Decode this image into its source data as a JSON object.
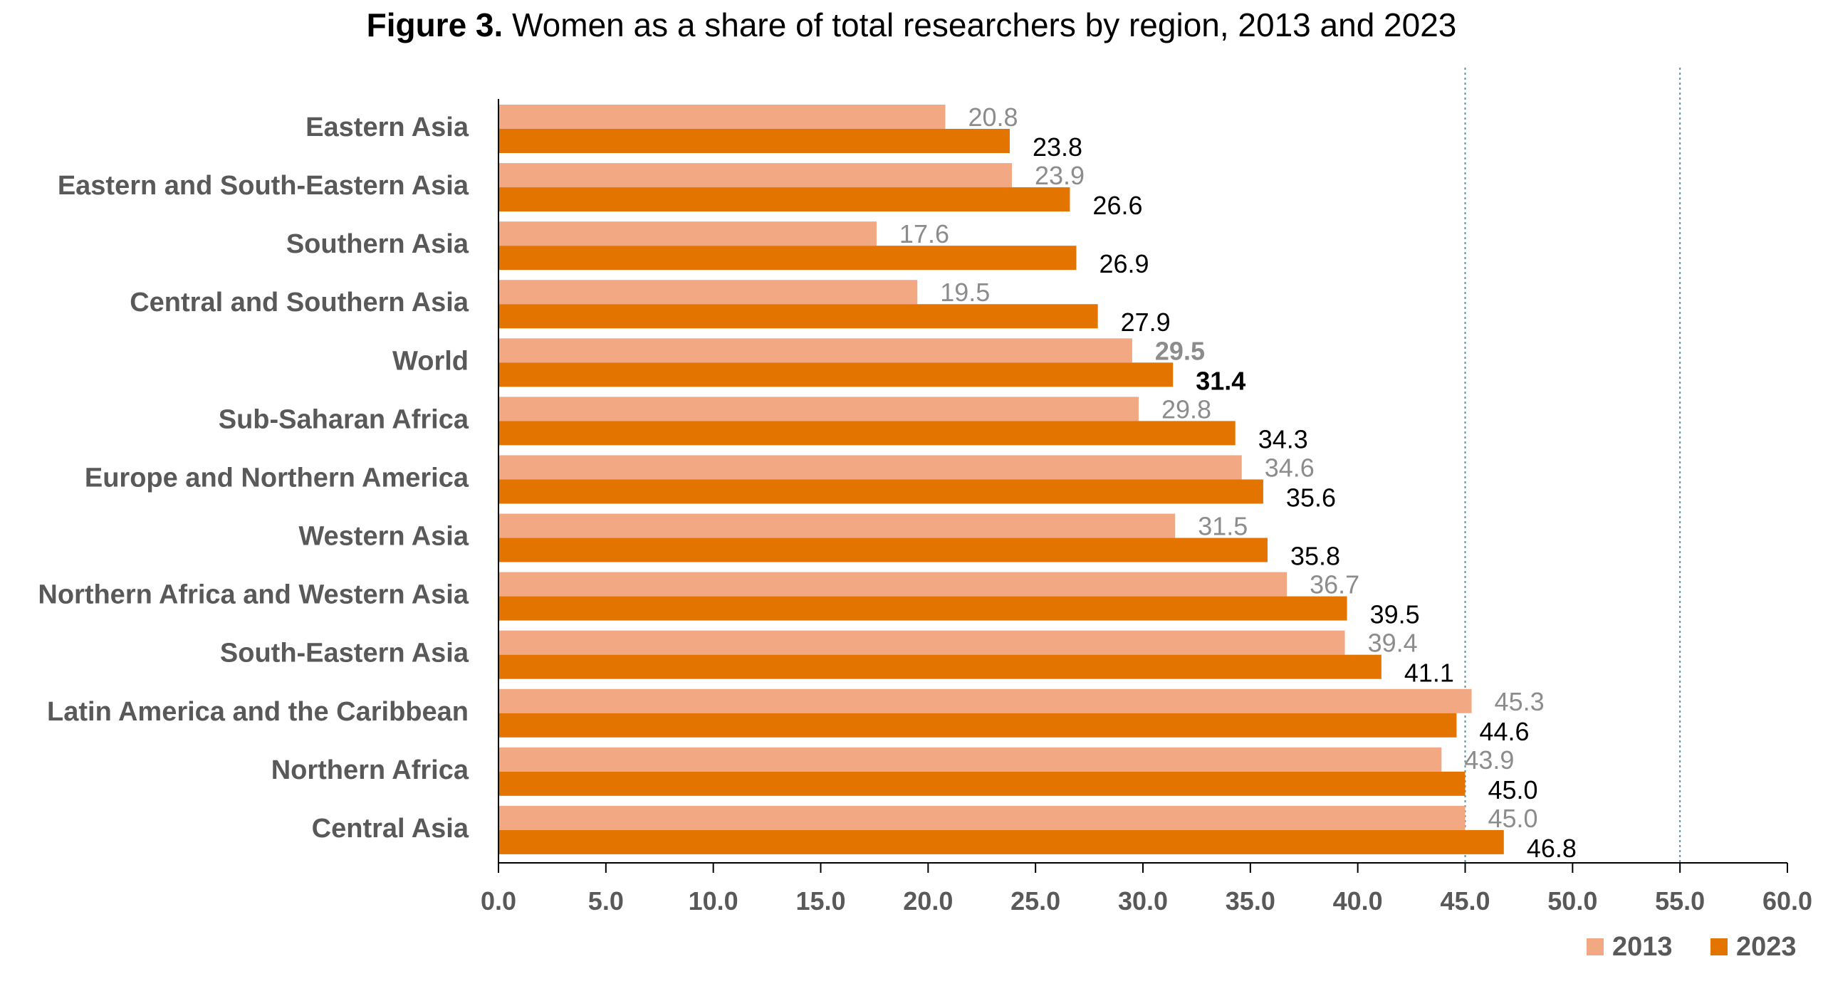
{
  "figure_label": "Figure 3.",
  "figure_title": "Women as a share of total researchers by region, 2013 and 2023",
  "colors": {
    "series_2013": "#f2a983",
    "series_2023": "#e37400",
    "axis": "#000000",
    "reference_line": "#5b8fa3"
  },
  "chart_data": {
    "type": "bar",
    "orientation": "horizontal",
    "title": "Figure 3. Women as a share of total researchers by region, 2013 and 2023",
    "categories": [
      "Eastern Asia",
      "Eastern and South-Eastern Asia",
      "Southern Asia",
      "Central and Southern Asia",
      "World",
      "Sub-Saharan Africa",
      "Europe and Northern America",
      "Western Asia",
      "Northern Africa and Western Asia",
      "South-Eastern Asia",
      "Latin America and the Caribbean",
      "Northern Africa",
      "Central Asia"
    ],
    "series": [
      {
        "name": "2013",
        "values": [
          20.8,
          23.9,
          17.6,
          19.5,
          29.5,
          29.8,
          34.6,
          31.5,
          36.7,
          39.4,
          45.3,
          43.9,
          45.0
        ],
        "labels": [
          "20.8",
          "23.9",
          "17.6",
          "19.5",
          "29.5",
          "29.8",
          "34.6",
          "31.5",
          "36.7",
          "39.4",
          "45.3",
          "43.9",
          "45.0"
        ]
      },
      {
        "name": "2023",
        "values": [
          23.8,
          26.6,
          26.9,
          27.9,
          31.4,
          34.3,
          35.6,
          35.8,
          39.5,
          41.1,
          44.6,
          45.0,
          46.8
        ],
        "labels": [
          "23.8",
          "26.6",
          "26.9",
          "27.9",
          "31.4",
          "34.3",
          "35.6",
          "35.8",
          "39.5",
          "41.1",
          "44.6",
          "45.0",
          "46.8"
        ]
      }
    ],
    "highlight_category": "World",
    "xlim": [
      0,
      60
    ],
    "xticks": [
      "0.0",
      "5.0",
      "10.0",
      "15.0",
      "20.0",
      "25.0",
      "30.0",
      "35.0",
      "40.0",
      "45.0",
      "50.0",
      "55.0",
      "60.0"
    ],
    "reference_lines": [
      45,
      55
    ],
    "grid": false,
    "legend": {
      "placement": "bottom-right",
      "entries": [
        "2013",
        "2023"
      ]
    }
  }
}
